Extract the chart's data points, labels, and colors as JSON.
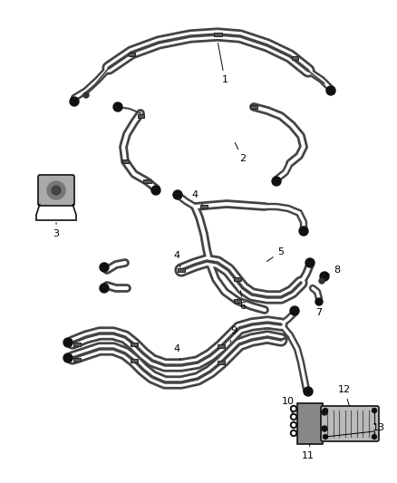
{
  "bg_color": "#ffffff",
  "line_color": "#444444",
  "dark_color": "#111111",
  "label_color": "#000000",
  "fig_width": 4.38,
  "fig_height": 5.33,
  "dpi": 100
}
